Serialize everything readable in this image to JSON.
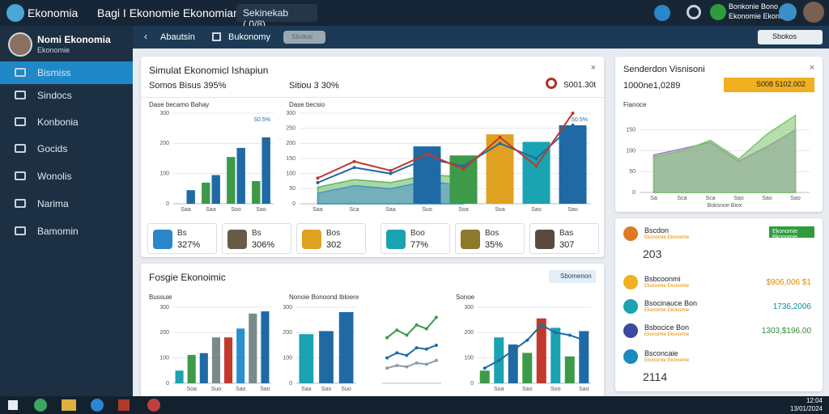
{
  "topbar": {
    "logo": "Ekonomia",
    "title": "Bagi I Ekonomie Ekonomian",
    "search": "Sekinekab (.0/8)",
    "user_line1": "Bonkonie Bono",
    "user_line2": "Ekonomie Ekonomie"
  },
  "sidebar": {
    "profile_name": "Nomi Ekonomia",
    "profile_role": "Ekonomie",
    "menu": [
      "Bismiss",
      "Sindocs",
      "Konbonia",
      "Gocids",
      "Wonolis",
      "Narima",
      "Bamomin"
    ]
  },
  "subnav": {
    "back": "Abautsin",
    "tab": "Bukonomy",
    "pill": "Sbokoc",
    "action": "Sbokos"
  },
  "panel1": {
    "title": "Simulat Ekonomicl Ishapiun",
    "stat1": "Somos Bisus 395%",
    "stat2": "Sitiou 3 30%",
    "stat3": "S001.30t",
    "cards": [
      {
        "title": "Bs",
        "value": "327%"
      },
      {
        "title": "Bs",
        "value": "306%"
      },
      {
        "title": "Bos",
        "value": "302"
      },
      {
        "title": "Boo",
        "value": "77%"
      },
      {
        "title": "Bos",
        "value": "35%"
      },
      {
        "title": "Bas",
        "value": "307"
      }
    ]
  },
  "panel_right": {
    "title": "Senderdon Visnisoni",
    "value": "1000ne1,0289",
    "badge": "S008 5102.002"
  },
  "panel2": {
    "title": "Fosgie Ekonoimic",
    "action": "Sbomenon"
  },
  "list": {
    "button": "Ekonomie Bkonomie",
    "items": [
      {
        "title": "Bscdon",
        "sub": "Ekonomie Ekonomie",
        "value": "203",
        "color": "#333333"
      },
      {
        "title": "Bsbcoonmi",
        "sub": "Ekonomie Ekonomie",
        "value": "$906,006 $1",
        "color": "#e08a00"
      },
      {
        "title": "Bsocinauce Bon",
        "sub": "Ekonomie Ekonomie",
        "value": "1736,2006",
        "color": "#138a9e"
      },
      {
        "title": "Bsbocice Bon",
        "sub": "Ekonomie Ekonomie",
        "value": "1303,$196.00",
        "color": "#2e8b3a"
      },
      {
        "title": "Bsconcaie",
        "sub": "Ekonomie Ekonomie",
        "value": "2114",
        "color": "#333333"
      }
    ]
  },
  "taskbar": {
    "time": "12:04",
    "date": "13/01/2024"
  },
  "charts": [
    {
      "type": "bar",
      "title": "Dase becamo Bahay",
      "annotation": "S0.5%",
      "categories": [
        "Saa",
        "Saa",
        "Soo",
        "Sao"
      ],
      "ylim": [
        0,
        300
      ],
      "yticks": [
        0,
        100,
        200,
        300
      ],
      "series": [
        {
          "color": "#3d9a48",
          "values": [
            null,
            70,
            155,
            75
          ]
        },
        {
          "color": "#1f6aa5",
          "values": [
            45,
            95,
            185,
            220
          ]
        }
      ]
    },
    {
      "type": "line",
      "title": "Dase becsio",
      "annotation": "S0.5%",
      "categories": [
        "Saa",
        "Sca",
        "Saa",
        "Suo",
        "Soa",
        "Soa",
        "Sao",
        "Sao"
      ],
      "ylim": [
        0,
        300
      ],
      "yticks": [
        0,
        50,
        100,
        150,
        200,
        250,
        300
      ],
      "series": [
        {
          "type": "area",
          "color": "#5cb85c",
          "values": [
            55,
            80,
            70,
            95,
            90,
            null,
            null,
            null
          ]
        },
        {
          "type": "area",
          "color": "#4a90c8",
          "values": [
            35,
            60,
            50,
            75,
            60,
            null,
            null,
            null
          ]
        },
        {
          "type": "bar",
          "colors": [
            null,
            null,
            null,
            "#1f6aa5",
            "#3d9a48",
            "#e0a020",
            "#1aa3b0",
            "#1f6aa5"
          ],
          "values": [
            null,
            null,
            null,
            190,
            160,
            230,
            205,
            260
          ]
        },
        {
          "type": "line",
          "color": "#1f6aa5",
          "values": [
            70,
            120,
            100,
            150,
            125,
            200,
            150,
            260
          ]
        },
        {
          "type": "line",
          "color": "#c0392b",
          "values": [
            85,
            140,
            110,
            165,
            115,
            220,
            125,
            300
          ]
        }
      ]
    },
    {
      "type": "area",
      "title": "Fianoce",
      "xlabel": "Boksnoe Biox",
      "categories": [
        "Sa",
        "Sca",
        "Sca",
        "Sao",
        "Sao",
        "Sao"
      ],
      "ylim": [
        0,
        200
      ],
      "yticks": [
        0,
        50,
        100,
        150
      ],
      "series": [
        {
          "color": "#a07cc8",
          "values": [
            90,
            105,
            120,
            75,
            110,
            150
          ]
        },
        {
          "color": "#7cc46a",
          "values": [
            85,
            100,
            125,
            80,
            140,
            185
          ]
        }
      ]
    },
    {
      "type": "bar",
      "title": "Bussuie",
      "categories": [
        null,
        "Soa",
        null,
        "Suo",
        null,
        "Sao",
        null,
        "Sao"
      ],
      "ylim": [
        0,
        300
      ],
      "yticks": [
        0,
        100,
        200,
        300
      ],
      "series": [
        {
          "colors": [
            "#1aa3b0",
            "#3d9a48",
            "#1f6aa5",
            "#7a8a8a",
            "#c0392b",
            "#2a8fd0",
            "#7a8a8a",
            "#1f6aa5"
          ],
          "values": [
            50,
            112,
            119,
            181,
            181,
            216,
            275,
            284
          ]
        }
      ]
    },
    {
      "type": "bar",
      "title": "Nonoie Bonoond Ibloere",
      "categories": [
        "Saa",
        "Sao",
        "Suo"
      ],
      "ylim": [
        0,
        300
      ],
      "yticks": [
        0,
        100,
        200,
        300
      ],
      "series": [
        {
          "colors": [
            "#1aa3b0",
            "#1f6aa5",
            "#1f6aa5"
          ],
          "values": [
            194,
            206,
            281
          ]
        }
      ]
    },
    {
      "type": "line",
      "categories": [
        null,
        null,
        null,
        null,
        null,
        null
      ],
      "ylim": [
        0,
        300
      ],
      "series": [
        {
          "color": "#3d9a48",
          "values": [
            180,
            210,
            190,
            230,
            215,
            260
          ]
        },
        {
          "color": "#1f6aa5",
          "values": [
            100,
            120,
            110,
            140,
            135,
            150
          ]
        },
        {
          "color": "#8a9aa8",
          "values": [
            60,
            70,
            65,
            80,
            75,
            90
          ]
        }
      ]
    },
    {
      "type": "bar",
      "title": "Sonoe",
      "categories": [
        null,
        "Soa",
        null,
        "Sao",
        null,
        "Soo",
        null,
        "Sao"
      ],
      "ylim": [
        0,
        300
      ],
      "yticks": [
        0,
        100,
        200,
        300
      ],
      "series": [
        {
          "colors": [
            "#3d9a48",
            "#1aa3b0",
            "#1f6aa5",
            "#3d9a48",
            "#c0392b",
            "#1aa3b0",
            "#3d9a48",
            "#1f6aa5"
          ],
          "values": [
            50,
            181,
            153,
            120,
            256,
            219,
            106,
            206
          ]
        },
        {
          "type": "line",
          "color": "#1f6aa5",
          "values": [
            60,
            90,
            130,
            170,
            230,
            200,
            190,
            170
          ]
        }
      ]
    }
  ]
}
